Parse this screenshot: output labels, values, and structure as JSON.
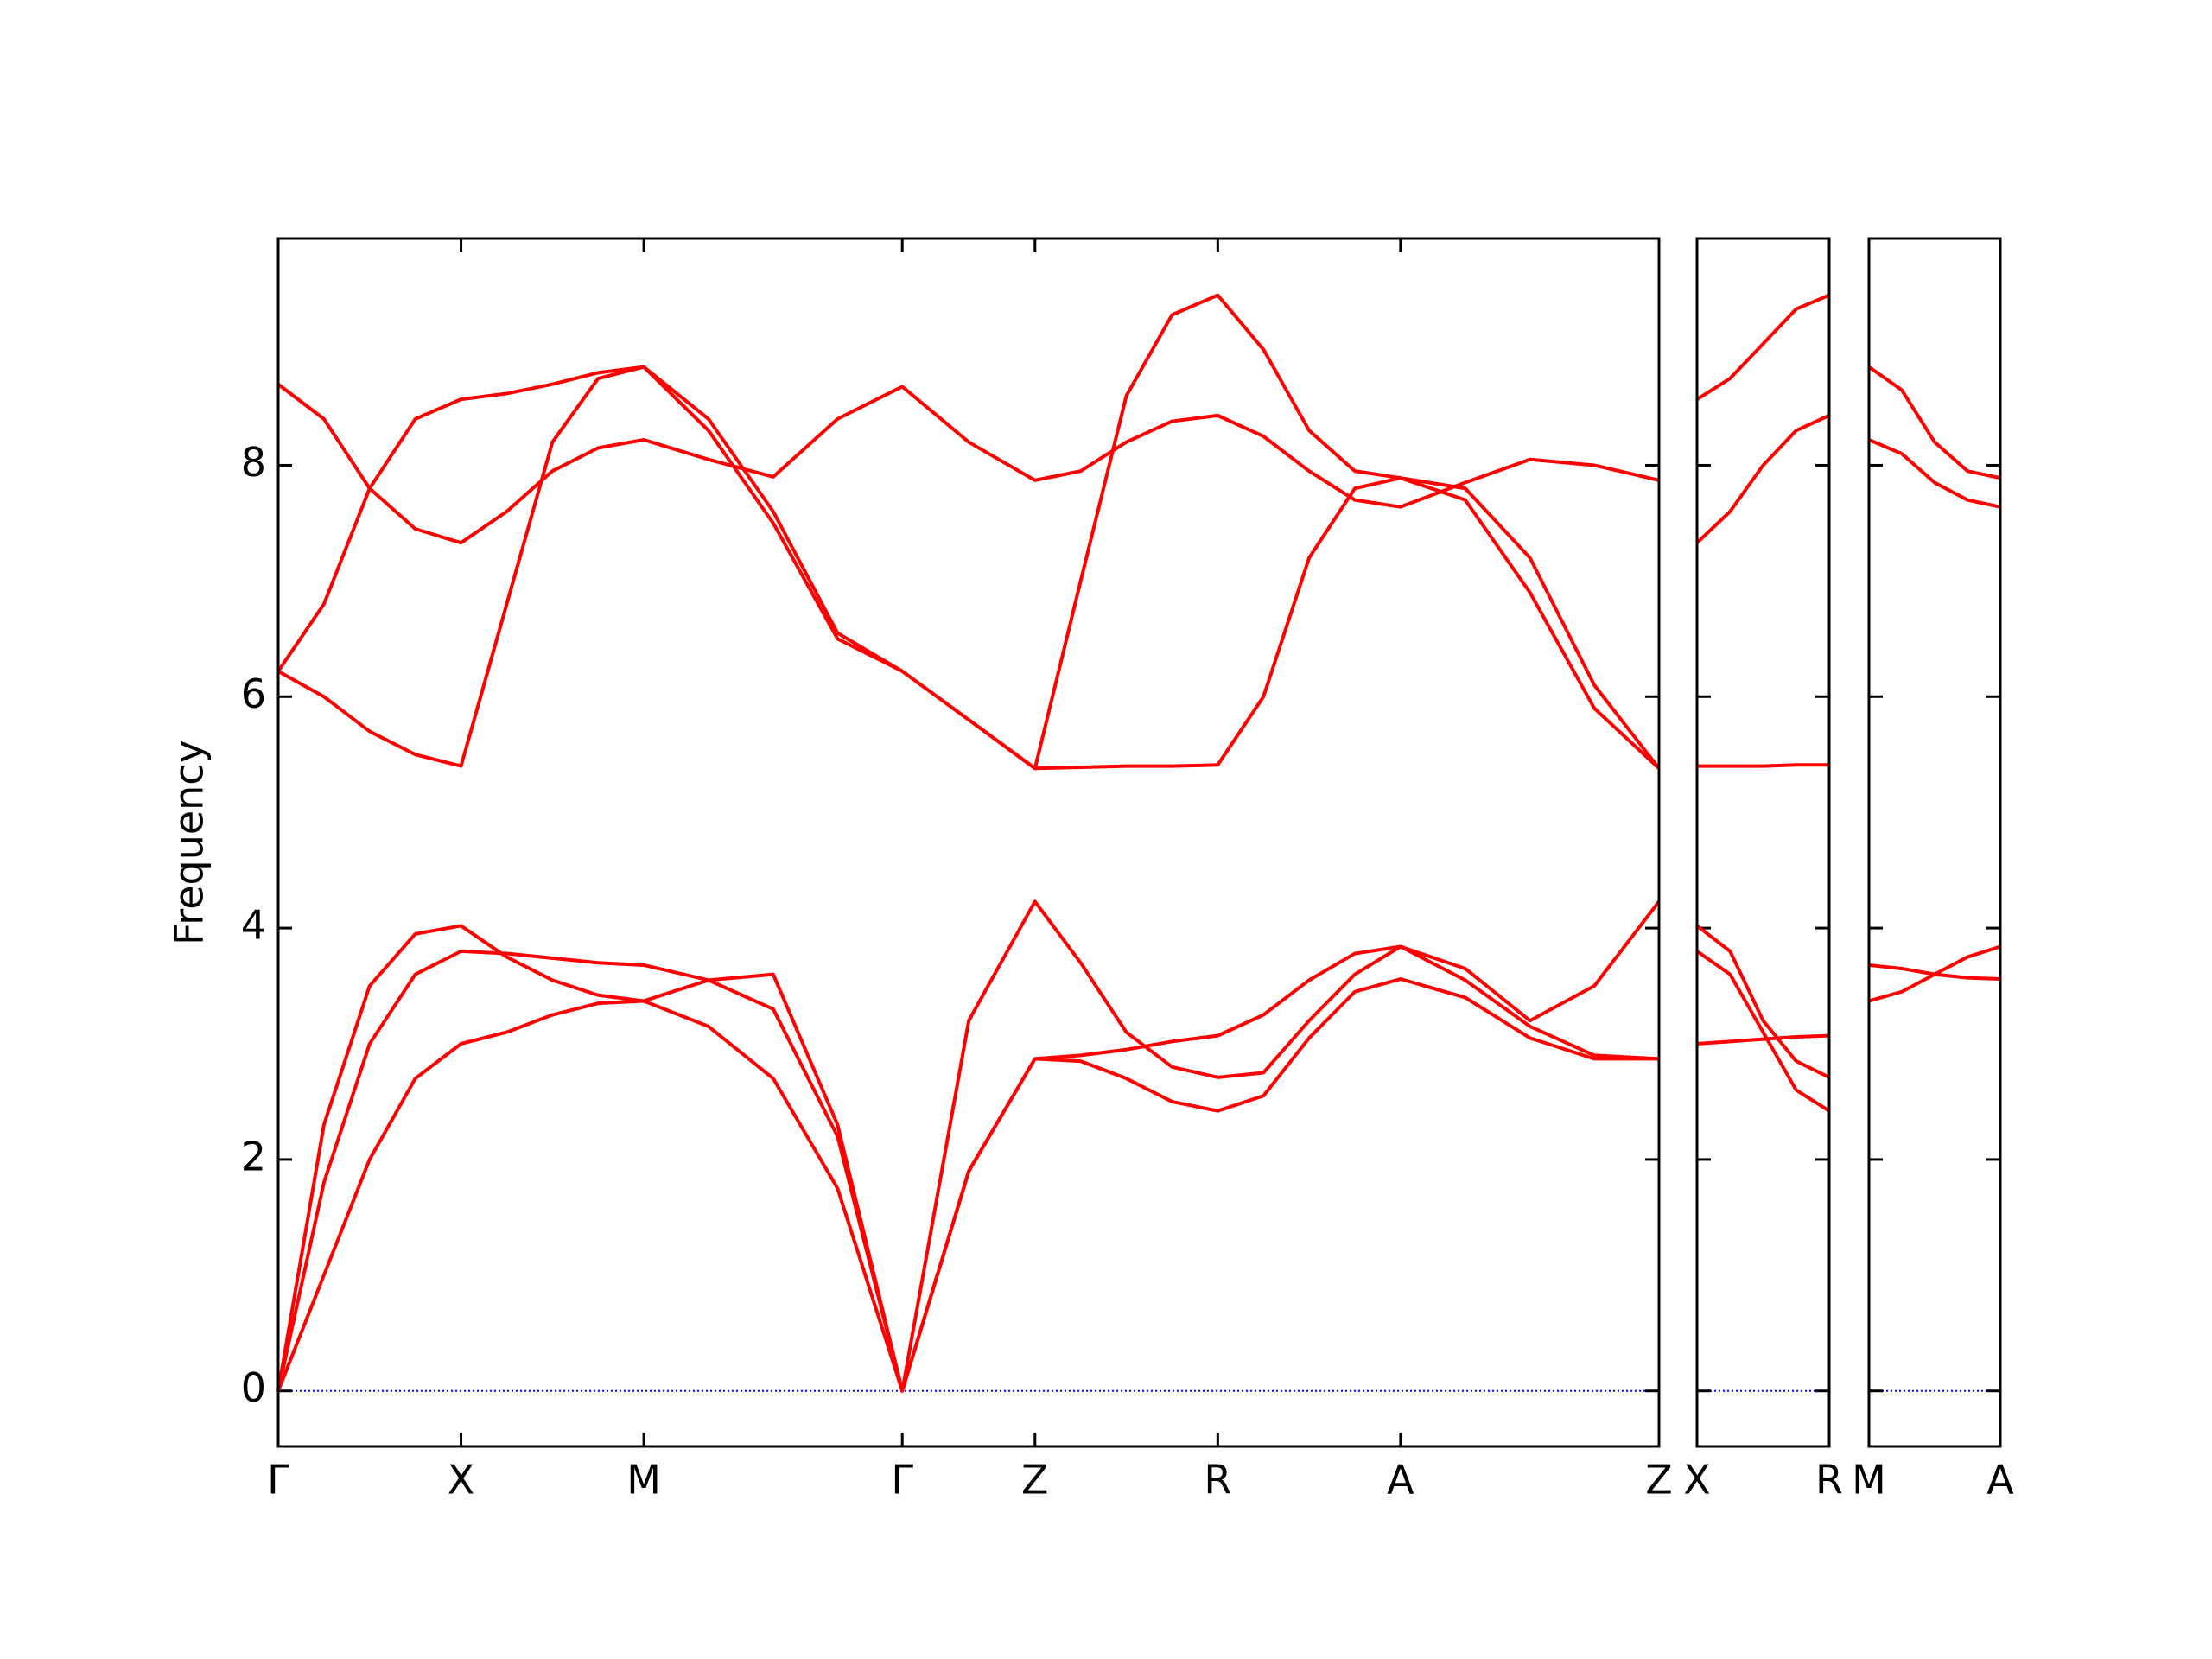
{
  "chart_data": [
    {
      "type": "line",
      "ylabel": "Frequency",
      "xlim": [
        0,
        3.777
      ],
      "xticks": [
        {
          "value": 0,
          "label": "Γ"
        },
        {
          "value": 0.5,
          "label": "X"
        },
        {
          "value": 1.0,
          "label": "M"
        },
        {
          "value": 1.707,
          "label": "Γ"
        },
        {
          "value": 2.07,
          "label": "Z"
        },
        {
          "value": 2.57,
          "label": "R"
        },
        {
          "value": 3.07,
          "label": "A"
        },
        {
          "value": 3.777,
          "label": "Z"
        }
      ],
      "ylim": [
        -0.48,
        9.96
      ],
      "yticks": [
        0,
        2,
        4,
        6,
        8
      ],
      "ytick_labels": true,
      "reference_line": {
        "value": 0,
        "color": "#0000ff"
      },
      "x": [
        0,
        0.125,
        0.25,
        0.375,
        0.5,
        0.625,
        0.75,
        0.875,
        1.0,
        1.177,
        1.354,
        1.53,
        1.707,
        1.889,
        2.07,
        2.195,
        2.32,
        2.445,
        2.57,
        2.695,
        2.82,
        2.945,
        3.07,
        3.247,
        3.424,
        3.6,
        3.777
      ],
      "series": [
        {
          "color": "#ff0000",
          "values": [
            0,
            1.0,
            2.0,
            2.7,
            3.0,
            3.1,
            3.25,
            3.35,
            3.37,
            3.15,
            2.7,
            1.75,
            0,
            1.9,
            2.87,
            2.9,
            2.95,
            3.02,
            3.07,
            3.25,
            3.55,
            3.78,
            3.84,
            3.65,
            3.2,
            3.5,
            4.23
          ]
        },
        {
          "color": "#ff0000",
          "values": [
            0,
            1.8,
            3.0,
            3.6,
            3.8,
            3.78,
            3.74,
            3.7,
            3.68,
            3.55,
            3.3,
            2.2,
            0,
            3.2,
            4.23,
            3.7,
            3.1,
            2.8,
            2.71,
            2.75,
            3.2,
            3.6,
            3.84,
            3.55,
            3.15,
            2.9,
            2.87
          ]
        },
        {
          "color": "#ff0000",
          "values": [
            0,
            2.3,
            3.5,
            3.95,
            4.02,
            3.75,
            3.55,
            3.42,
            3.37,
            3.55,
            3.6,
            2.3,
            0,
            1.9,
            2.87,
            2.85,
            2.7,
            2.5,
            2.42,
            2.55,
            3.05,
            3.45,
            3.56,
            3.4,
            3.05,
            2.87,
            2.87
          ]
        },
        {
          "color": "#ff0000",
          "values": [
            8.7,
            8.4,
            7.8,
            7.45,
            7.33,
            7.6,
            7.95,
            8.15,
            8.22,
            8.05,
            7.9,
            8.4,
            8.68,
            8.2,
            7.87,
            7.95,
            8.2,
            8.38,
            8.43,
            8.25,
            7.95,
            7.7,
            7.64,
            7.85,
            8.05,
            8.0,
            7.87
          ]
        },
        {
          "color": "#ff0000",
          "values": [
            6.22,
            6.8,
            7.8,
            8.4,
            8.57,
            8.62,
            8.7,
            8.8,
            8.85,
            8.3,
            7.5,
            6.5,
            6.22,
            5.8,
            5.38,
            7.0,
            8.6,
            9.3,
            9.47,
            9.0,
            8.3,
            7.95,
            7.89,
            7.8,
            7.2,
            6.1,
            5.38
          ]
        },
        {
          "color": "#ff0000",
          "values": [
            6.22,
            6.0,
            5.7,
            5.5,
            5.4,
            6.8,
            8.2,
            8.75,
            8.85,
            8.4,
            7.6,
            6.55,
            6.22,
            5.8,
            5.38,
            5.39,
            5.4,
            5.4,
            5.41,
            6.0,
            7.2,
            7.8,
            7.89,
            7.7,
            6.9,
            5.9,
            5.38
          ]
        }
      ]
    },
    {
      "type": "line",
      "xlim": [
        0,
        0.36
      ],
      "xticks": [
        {
          "value": 0,
          "label": "X"
        },
        {
          "value": 0.36,
          "label": "R"
        }
      ],
      "ylim": [
        -0.48,
        9.96
      ],
      "yticks": [
        0,
        2,
        4,
        6,
        8
      ],
      "ytick_labels": false,
      "reference_line": {
        "value": 0,
        "color": "#0000ff"
      },
      "x": [
        0,
        0.09,
        0.18,
        0.27,
        0.36
      ],
      "series": [
        {
          "color": "#ff0000",
          "values": [
            3.0,
            3.02,
            3.04,
            3.06,
            3.07
          ]
        },
        {
          "color": "#ff0000",
          "values": [
            3.8,
            3.6,
            3.1,
            2.6,
            2.42
          ]
        },
        {
          "color": "#ff0000",
          "values": [
            4.02,
            3.8,
            3.2,
            2.85,
            2.71
          ]
        },
        {
          "color": "#ff0000",
          "values": [
            5.4,
            5.4,
            5.4,
            5.41,
            5.41
          ]
        },
        {
          "color": "#ff0000",
          "values": [
            7.33,
            7.6,
            8.0,
            8.3,
            8.43
          ]
        },
        {
          "color": "#ff0000",
          "values": [
            8.57,
            8.75,
            9.05,
            9.35,
            9.47
          ]
        }
      ]
    },
    {
      "type": "line",
      "xlim": [
        0,
        0.36
      ],
      "xticks": [
        {
          "value": 0,
          "label": "M"
        },
        {
          "value": 0.36,
          "label": "A"
        }
      ],
      "ylim": [
        -0.48,
        9.96
      ],
      "yticks": [
        0,
        2,
        4,
        6,
        8
      ],
      "ytick_labels": false,
      "reference_line": {
        "value": 0,
        "color": "#0000ff"
      },
      "x": [
        0,
        0.09,
        0.18,
        0.27,
        0.36
      ],
      "series": [
        {
          "color": "#ff0000",
          "values": [
            3.37,
            3.45,
            3.6,
            3.75,
            3.84
          ]
        },
        {
          "color": "#ff0000",
          "values": [
            3.68,
            3.65,
            3.6,
            3.57,
            3.56
          ]
        },
        {
          "color": "#ff0000",
          "values": [
            8.22,
            8.1,
            7.85,
            7.7,
            7.64
          ]
        },
        {
          "color": "#ff0000",
          "values": [
            8.85,
            8.65,
            8.2,
            7.95,
            7.89
          ]
        }
      ]
    }
  ]
}
